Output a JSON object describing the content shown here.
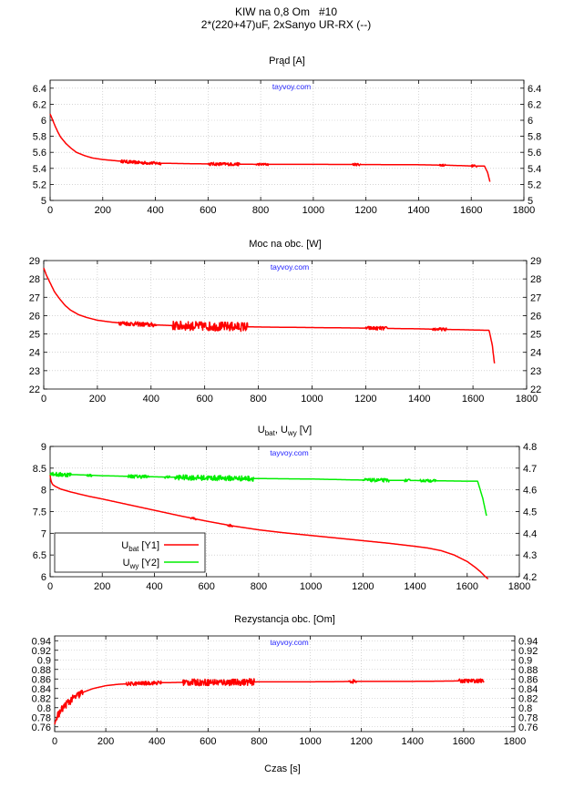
{
  "figure": {
    "title_line1": "KIW na 0,8 Om   #10",
    "title_line2": "2*(220+47)uF, 2xSanyo UR-RX (--)",
    "watermark": "tayvoy.com",
    "xlabel": "Czas [s]"
  },
  "colors": {
    "red": "#ff0000",
    "green": "#00ee00",
    "grid": "#bbbbbb"
  },
  "chart_data": [
    {
      "type": "line",
      "title": "Prąd [A]",
      "xlim": [
        0,
        1800
      ],
      "ylim": [
        5,
        6.5
      ],
      "xticks": [
        0,
        200,
        400,
        600,
        800,
        1000,
        1200,
        1400,
        1600,
        1800
      ],
      "yticks": [
        5,
        5.2,
        5.4,
        5.6,
        5.8,
        6,
        6.2,
        6.4
      ],
      "ytick_labels": [
        "5",
        "5.2",
        "5.4",
        "5.6",
        "5.8",
        "6",
        "6.2",
        "6.4"
      ],
      "y2ticks": [
        5,
        5.2,
        5.4,
        5.6,
        5.8,
        6,
        6.2,
        6.4
      ],
      "y2tick_labels": [
        "5",
        "5.2",
        "5.4",
        "5.6",
        "5.8",
        "6",
        "6.2",
        "6.4"
      ],
      "series": [
        {
          "name": "Prąd",
          "color": "#ff0000",
          "axis": "y1",
          "x": [
            0,
            5,
            10,
            20,
            30,
            40,
            60,
            80,
            100,
            130,
            160,
            200,
            250,
            300,
            350,
            400,
            500,
            600,
            700,
            800,
            1000,
            1200,
            1400,
            1500,
            1550,
            1600,
            1650,
            1662,
            1672
          ],
          "y": [
            6.08,
            6.04,
            6.0,
            5.92,
            5.85,
            5.79,
            5.71,
            5.65,
            5.6,
            5.56,
            5.53,
            5.51,
            5.495,
            5.48,
            5.47,
            5.465,
            5.46,
            5.455,
            5.452,
            5.45,
            5.45,
            5.448,
            5.445,
            5.44,
            5.435,
            5.43,
            5.43,
            5.35,
            5.22
          ],
          "noise": [
            [
              270,
              420,
              0.02
            ],
            [
              600,
              720,
              0.02
            ],
            [
              780,
              830,
              0.015
            ],
            [
              1150,
              1180,
              0.015
            ],
            [
              1480,
              1500,
              0.015
            ],
            [
              1600,
              1620,
              0.015
            ]
          ]
        }
      ]
    },
    {
      "type": "line",
      "title": "Moc na obc. [W]",
      "xlim": [
        0,
        1800
      ],
      "ylim": [
        22,
        29
      ],
      "xticks": [
        0,
        200,
        400,
        600,
        800,
        1000,
        1200,
        1400,
        1600,
        1800
      ],
      "yticks": [
        22,
        23,
        24,
        25,
        26,
        27,
        28,
        29
      ],
      "ytick_labels": [
        "22",
        "23",
        "24",
        "25",
        "26",
        "27",
        "28",
        "29"
      ],
      "y2ticks": [
        22,
        23,
        24,
        25,
        26,
        27,
        28,
        29
      ],
      "y2tick_labels": [
        "22",
        "23",
        "24",
        "25",
        "26",
        "27",
        "28",
        "29"
      ],
      "series": [
        {
          "name": "Moc",
          "color": "#ff0000",
          "axis": "y1",
          "x": [
            0,
            5,
            10,
            20,
            30,
            40,
            60,
            80,
            100,
            130,
            160,
            200,
            250,
            300,
            400,
            500,
            600,
            700,
            800,
            1000,
            1200,
            1400,
            1500,
            1600,
            1650,
            1660,
            1672,
            1680
          ],
          "y": [
            28.6,
            28.4,
            28.2,
            27.9,
            27.6,
            27.3,
            26.9,
            26.55,
            26.3,
            26.05,
            25.9,
            25.75,
            25.65,
            25.58,
            25.5,
            25.45,
            25.42,
            25.4,
            25.38,
            25.35,
            25.32,
            25.28,
            25.25,
            25.22,
            25.2,
            25.2,
            24.4,
            23.4
          ],
          "noise": [
            [
              280,
              420,
              0.12
            ],
            [
              480,
              760,
              0.25
            ],
            [
              1200,
              1280,
              0.1
            ],
            [
              1450,
              1500,
              0.08
            ]
          ]
        }
      ]
    },
    {
      "type": "line",
      "title": "U_bat, U_wy [V]",
      "title_parts": [
        "U",
        "bat",
        ", U",
        "wy",
        " [V]"
      ],
      "xlim": [
        0,
        1800
      ],
      "ylim": [
        6,
        9
      ],
      "y2lim": [
        4.2,
        4.8
      ],
      "xticks": [
        0,
        200,
        400,
        600,
        800,
        1000,
        1200,
        1400,
        1600,
        1800
      ],
      "yticks": [
        6,
        6.5,
        7,
        7.5,
        8,
        8.5,
        9
      ],
      "ytick_labels": [
        "6",
        "6.5",
        "7",
        "7.5",
        "8",
        "8.5",
        "9"
      ],
      "y2ticks": [
        4.2,
        4.3,
        4.4,
        4.5,
        4.6,
        4.7,
        4.8
      ],
      "y2tick_labels": [
        "4.2",
        "4.3",
        "4.4",
        "4.5",
        "4.6",
        "4.7",
        "4.8"
      ],
      "legend": {
        "position": "bottom-left",
        "entries": [
          {
            "main": "U",
            "sub": "bat",
            "tail": " [Y1]",
            "color": "#ff0000"
          },
          {
            "main": "U",
            "sub": "wy",
            "tail": " [Y2]",
            "color": "#00ee00"
          }
        ]
      },
      "series": [
        {
          "name": "U_bat",
          "color": "#ff0000",
          "axis": "y1",
          "x": [
            0,
            2,
            5,
            10,
            20,
            40,
            80,
            150,
            200,
            300,
            400,
            500,
            600,
            700,
            800,
            900,
            1000,
            1100,
            1200,
            1300,
            1400,
            1450,
            1500,
            1550,
            1600,
            1630,
            1650,
            1670,
            1680
          ],
          "y": [
            8.35,
            8.25,
            8.18,
            8.12,
            8.08,
            8.02,
            7.95,
            7.85,
            7.79,
            7.66,
            7.53,
            7.4,
            7.28,
            7.17,
            7.08,
            7.01,
            6.95,
            6.89,
            6.83,
            6.77,
            6.7,
            6.66,
            6.6,
            6.5,
            6.35,
            6.22,
            6.12,
            6.0,
            5.95
          ],
          "noise": [
            [
              540,
              560,
              0.03
            ],
            [
              680,
              700,
              0.03
            ]
          ]
        },
        {
          "name": "U_wy",
          "color": "#00ee00",
          "axis": "y2",
          "x": [
            0,
            10,
            30,
            60,
            100,
            140,
            200,
            400,
            600,
            800,
            1000,
            1200,
            1400,
            1600,
            1640,
            1660,
            1675
          ],
          "y": [
            4.68,
            4.675,
            4.67,
            4.67,
            4.67,
            4.668,
            4.665,
            4.66,
            4.655,
            4.652,
            4.65,
            4.645,
            4.643,
            4.64,
            4.64,
            4.56,
            4.475
          ],
          "noise": [
            [
              0,
              80,
              0.01
            ],
            [
              140,
              160,
              0.006
            ],
            [
              300,
              380,
              0.008
            ],
            [
              440,
              460,
              0.006
            ],
            [
              480,
              780,
              0.012
            ],
            [
              1200,
              1300,
              0.008
            ],
            [
              1360,
              1380,
              0.006
            ],
            [
              1420,
              1480,
              0.006
            ]
          ]
        }
      ]
    },
    {
      "type": "line",
      "title": "Rezystancja obc. [Om]",
      "xlim": [
        0,
        1800
      ],
      "ylim": [
        0.75,
        0.95
      ],
      "xticks": [
        0,
        200,
        400,
        600,
        800,
        1000,
        1200,
        1400,
        1600,
        1800
      ],
      "yticks": [
        0.76,
        0.78,
        0.8,
        0.82,
        0.84,
        0.86,
        0.88,
        0.9,
        0.92,
        0.94
      ],
      "ytick_labels": [
        "0.76",
        "0.78",
        "0.8",
        "0.82",
        "0.84",
        "0.86",
        "0.88",
        "0.9",
        "0.92",
        "0.94"
      ],
      "y2ticks": [
        0.76,
        0.78,
        0.8,
        0.82,
        0.84,
        0.86,
        0.88,
        0.9,
        0.92,
        0.94
      ],
      "y2tick_labels": [
        "0.76",
        "0.78",
        "0.8",
        "0.82",
        "0.84",
        "0.86",
        "0.88",
        "0.9",
        "0.92",
        "0.94"
      ],
      "series": [
        {
          "name": "Rezystancja",
          "color": "#ff0000",
          "axis": "y1",
          "x": [
            0,
            5,
            10,
            20,
            30,
            50,
            80,
            110,
            150,
            200,
            250,
            300,
            400,
            500,
            600,
            700,
            800,
            1000,
            1200,
            1400,
            1600,
            1680
          ],
          "y": [
            0.765,
            0.775,
            0.783,
            0.79,
            0.798,
            0.81,
            0.822,
            0.832,
            0.84,
            0.846,
            0.849,
            0.85,
            0.852,
            0.853,
            0.853,
            0.853,
            0.854,
            0.854,
            0.855,
            0.855,
            0.856,
            0.856
          ],
          "noise": [
            [
              5,
              110,
              0.008
            ],
            [
              280,
              420,
              0.004
            ],
            [
              500,
              780,
              0.007
            ],
            [
              1150,
              1180,
              0.004
            ],
            [
              1580,
              1680,
              0.004
            ]
          ]
        }
      ]
    }
  ]
}
